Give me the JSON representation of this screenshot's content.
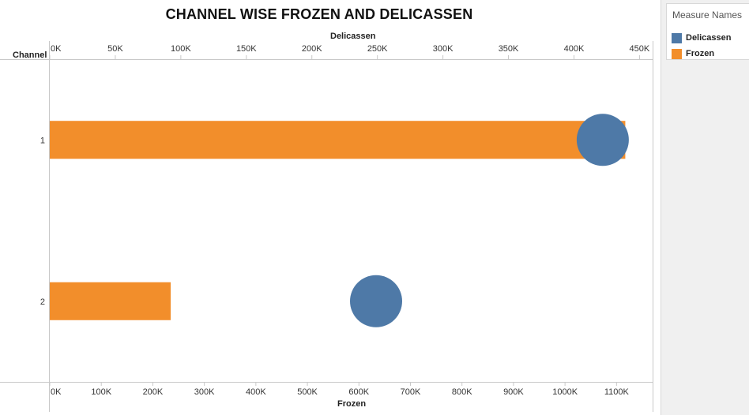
{
  "chart_data": {
    "type": "bar",
    "title": "CHANNEL WISE FROZEN AND DELICASSEN",
    "row_axis_label": "Channel",
    "categories": [
      "1",
      "2"
    ],
    "series": [
      {
        "name": "Frozen",
        "mark": "bar",
        "axis": "bottom",
        "values": [
          1116979,
          234671
        ],
        "color": "#F28E2B"
      },
      {
        "name": "Delicassen",
        "mark": "circle",
        "axis": "top",
        "values": [
          421955,
          248988
        ],
        "color": "#4E79A7"
      }
    ],
    "top_axis": {
      "label": "Delicassen",
      "range": [
        0,
        460000
      ],
      "ticks": [
        0,
        50000,
        100000,
        150000,
        200000,
        250000,
        300000,
        350000,
        400000,
        450000
      ],
      "tick_labels": [
        "0K",
        "50K",
        "100K",
        "150K",
        "200K",
        "250K",
        "300K",
        "350K",
        "400K",
        "450K"
      ]
    },
    "bottom_axis": {
      "label": "Frozen",
      "range": [
        0,
        1170000
      ],
      "ticks": [
        0,
        100000,
        200000,
        300000,
        400000,
        500000,
        600000,
        700000,
        800000,
        900000,
        1000000,
        1100000
      ],
      "tick_labels": [
        "0K",
        "100K",
        "200K",
        "300K",
        "400K",
        "500K",
        "600K",
        "700K",
        "800K",
        "900K",
        "1000K",
        "1100K"
      ]
    },
    "grid": false,
    "legend_position": "right"
  },
  "legend": {
    "title": "Measure Names",
    "items": [
      {
        "label": "Delicassen",
        "color": "#4E79A7"
      },
      {
        "label": "Frozen",
        "color": "#F28E2B"
      }
    ]
  }
}
